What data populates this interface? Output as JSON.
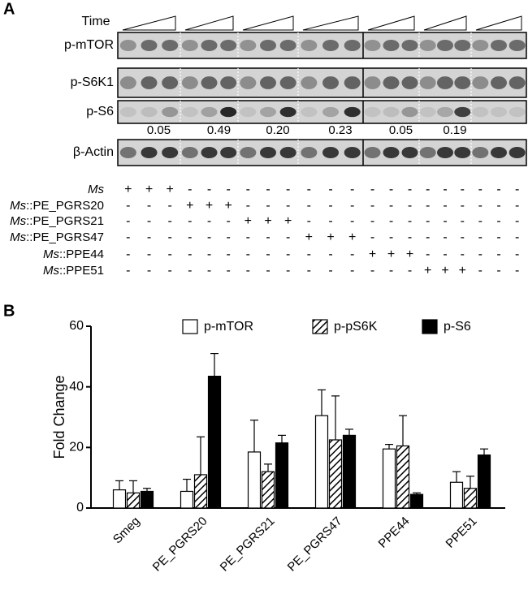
{
  "panel_a": {
    "label": "A",
    "time_label": "Time",
    "blot_rows": [
      "p-mTOR",
      "p-S6K1",
      "p-S6",
      "β-Actin"
    ],
    "quantification": [
      "0.05",
      "0.49",
      "0.20",
      "0.23",
      "0.05",
      "0.19"
    ],
    "strain_table": [
      {
        "italic": "Ms",
        "marks": "+++------------------"
      },
      {
        "italic": "Ms",
        "rest": "::PE_PGRS20",
        "marks": "---+++---------------"
      },
      {
        "italic": "Ms",
        "rest": "::PE_PGRS21",
        "marks": "------+++------------"
      },
      {
        "italic": "Ms",
        "rest": "::PE_PGRS47",
        "marks": "---------+++---------"
      },
      {
        "italic": "Ms",
        "rest": "::PPE44",
        "marks": "------------+++------"
      },
      {
        "italic": "Ms",
        "rest": "::PPE51",
        "marks": "---------------+++---"
      }
    ]
  },
  "panel_b_label": "B",
  "chart_data": {
    "type": "bar",
    "ylabel": "Fold Change",
    "categories": [
      "Smeg",
      "PE_PGRS20",
      "PE_PGRS21",
      "PE_PGRS47",
      "PPE44",
      "PPE51"
    ],
    "series": [
      {
        "name": "p-mTOR",
        "color": "#ffffff",
        "values": [
          6,
          5.5,
          18.5,
          30.5,
          19.5,
          8.5
        ],
        "errors": [
          3,
          4,
          10.5,
          8.5,
          1.5,
          3.5
        ]
      },
      {
        "name": "p-pS6K",
        "color": "#ffffff",
        "hatch": true,
        "values": [
          5,
          11,
          12,
          22.5,
          20.5,
          6.5
        ],
        "errors": [
          4,
          12.5,
          2.5,
          14.5,
          10,
          4
        ]
      },
      {
        "name": "p-S6",
        "color": "#000000",
        "values": [
          5.5,
          43.5,
          21.5,
          24,
          4.5,
          17.5
        ],
        "errors": [
          1,
          7.5,
          2.5,
          2,
          0.5,
          2
        ]
      }
    ],
    "ylim": [
      0,
      60
    ],
    "yticks": [
      0,
      20,
      40,
      60
    ]
  }
}
